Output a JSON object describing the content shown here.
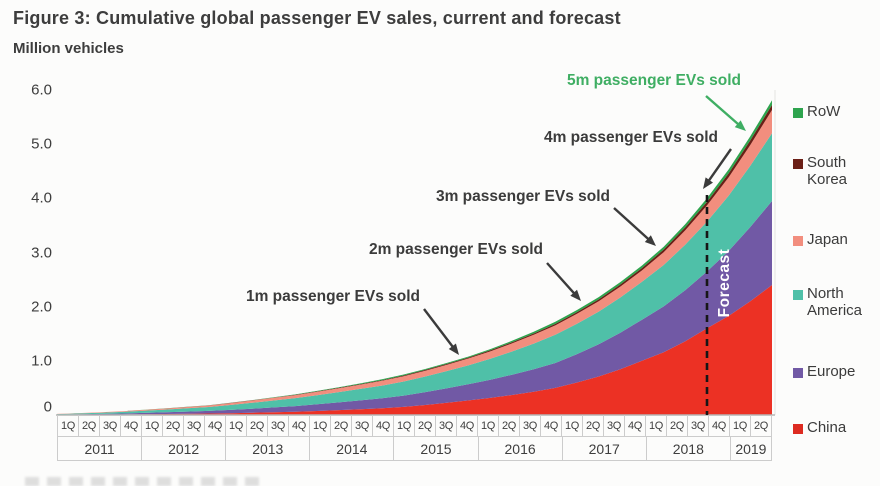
{
  "figure": {
    "title": "Figure 3: Cumulative global passenger EV sales, current and forecast",
    "y_axis_title": "Million vehicles"
  },
  "chart_data": {
    "type": "area",
    "stacked": true,
    "title": "Figure 3: Cumulative global passenger EV sales, current and forecast",
    "ylabel": "Million vehicles",
    "ylim": [
      0,
      6
    ],
    "y_ticks": [
      "6.0",
      "5.0",
      "4.0",
      "3.0",
      "2.0",
      "1.0",
      "0"
    ],
    "x_start": "1Q 2011",
    "x_end": "2Q 2019",
    "x_quarters": [
      "1Q",
      "2Q",
      "3Q",
      "4Q",
      "1Q",
      "2Q",
      "3Q",
      "4Q",
      "1Q",
      "2Q",
      "3Q",
      "4Q",
      "1Q",
      "2Q",
      "3Q",
      "4Q",
      "1Q",
      "2Q",
      "3Q",
      "4Q",
      "1Q",
      "2Q",
      "3Q",
      "4Q",
      "1Q",
      "2Q",
      "3Q",
      "4Q",
      "1Q",
      "2Q",
      "3Q",
      "4Q",
      "1Q",
      "2Q"
    ],
    "x_years": [
      {
        "label": "2011",
        "span": 4
      },
      {
        "label": "2012",
        "span": 4
      },
      {
        "label": "2013",
        "span": 4
      },
      {
        "label": "2014",
        "span": 4
      },
      {
        "label": "2015",
        "span": 4
      },
      {
        "label": "2016",
        "span": 4
      },
      {
        "label": "2017",
        "span": 4
      },
      {
        "label": "2018",
        "span": 4
      },
      {
        "label": "2019",
        "span": 2
      }
    ],
    "unit": "million vehicles, cumulative",
    "series": [
      {
        "name": "China",
        "color": "#EC3124",
        "values": [
          0.003,
          0.005,
          0.007,
          0.01,
          0.014,
          0.018,
          0.022,
          0.027,
          0.034,
          0.042,
          0.051,
          0.06,
          0.074,
          0.09,
          0.107,
          0.125,
          0.15,
          0.185,
          0.225,
          0.27,
          0.315,
          0.37,
          0.43,
          0.5,
          0.6,
          0.71,
          0.845,
          1.0,
          1.16,
          1.36,
          1.6,
          1.83,
          2.1,
          2.4
        ]
      },
      {
        "name": "Europe",
        "color": "#7159A5",
        "values": [
          0.005,
          0.009,
          0.013,
          0.018,
          0.025,
          0.032,
          0.04,
          0.048,
          0.061,
          0.075,
          0.089,
          0.104,
          0.123,
          0.142,
          0.162,
          0.183,
          0.208,
          0.237,
          0.268,
          0.3,
          0.335,
          0.374,
          0.416,
          0.46,
          0.525,
          0.595,
          0.675,
          0.76,
          0.845,
          0.945,
          1.05,
          1.2,
          1.37,
          1.55
        ]
      },
      {
        "name": "North America",
        "color": "#4FC0A8",
        "values": [
          0.009,
          0.016,
          0.023,
          0.03,
          0.04,
          0.05,
          0.061,
          0.072,
          0.09,
          0.109,
          0.128,
          0.148,
          0.169,
          0.19,
          0.212,
          0.235,
          0.261,
          0.289,
          0.319,
          0.35,
          0.388,
          0.428,
          0.472,
          0.52,
          0.56,
          0.603,
          0.65,
          0.7,
          0.765,
          0.84,
          0.92,
          1.02,
          1.13,
          1.25
        ]
      },
      {
        "name": "Japan",
        "color": "#F28E7E",
        "values": [
          0.003,
          0.006,
          0.008,
          0.011,
          0.015,
          0.019,
          0.024,
          0.028,
          0.035,
          0.042,
          0.049,
          0.056,
          0.064,
          0.072,
          0.08,
          0.089,
          0.098,
          0.107,
          0.116,
          0.125,
          0.137,
          0.149,
          0.162,
          0.175,
          0.183,
          0.192,
          0.201,
          0.21,
          0.235,
          0.265,
          0.3,
          0.34,
          0.385,
          0.43
        ]
      },
      {
        "name": "South Korea",
        "color": "#6B1F16",
        "values": [
          0.0,
          0.0,
          0.0,
          0.001,
          0.001,
          0.001,
          0.002,
          0.002,
          0.003,
          0.003,
          0.004,
          0.005,
          0.006,
          0.008,
          0.009,
          0.011,
          0.012,
          0.014,
          0.015,
          0.017,
          0.019,
          0.021,
          0.024,
          0.027,
          0.031,
          0.035,
          0.039,
          0.044,
          0.05,
          0.057,
          0.065,
          0.074,
          0.084,
          0.095
        ]
      },
      {
        "name": "RoW",
        "color": "#2EA44E",
        "values": [
          0.0,
          0.0,
          0.001,
          0.001,
          0.001,
          0.002,
          0.002,
          0.003,
          0.004,
          0.005,
          0.006,
          0.007,
          0.009,
          0.011,
          0.014,
          0.017,
          0.018,
          0.018,
          0.018,
          0.018,
          0.023,
          0.028,
          0.033,
          0.038,
          0.04,
          0.042,
          0.044,
          0.046,
          0.052,
          0.058,
          0.065,
          0.071,
          0.078,
          0.085
        ]
      }
    ],
    "annotations": [
      {
        "label": "1m passenger EVs sold",
        "color": "#3b3b3b"
      },
      {
        "label": "2m passenger EVs sold",
        "color": "#3b3b3b"
      },
      {
        "label": "3m passenger EVs sold",
        "color": "#3b3b3b"
      },
      {
        "label": "4m passenger EVs sold",
        "color": "#3b3b3b"
      },
      {
        "label": "5m passenger EVs sold",
        "color": "#3FAE63"
      }
    ],
    "forecast": {
      "label": "Forecast",
      "starts_at_quarter": "3Q 2018",
      "quarter_index": 30
    },
    "legend_position": "right",
    "grid": false
  },
  "legend": {
    "items": [
      {
        "label": "RoW",
        "color": "#2EA44E"
      },
      {
        "label": "South Korea",
        "color": "#6B1F16"
      },
      {
        "label": "Japan",
        "color": "#F28E7E"
      },
      {
        "label": "North America",
        "color": "#4FC0A8"
      },
      {
        "label": "Europe",
        "color": "#7159A5"
      },
      {
        "label": "China",
        "color": "#DD2B21"
      }
    ]
  }
}
